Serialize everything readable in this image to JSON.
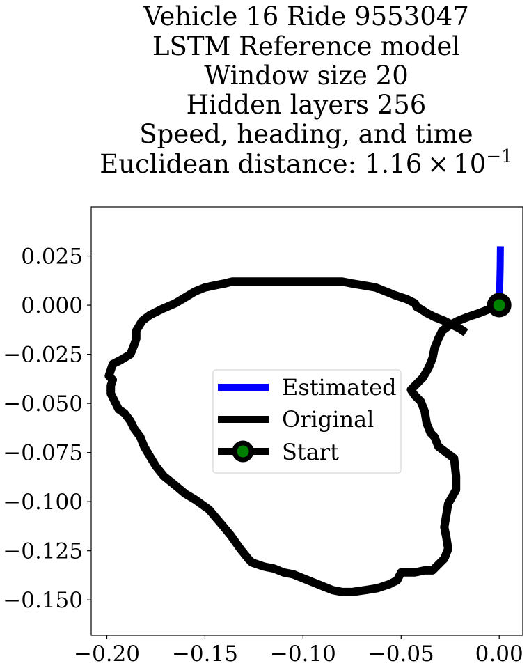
{
  "chart_data": {
    "type": "line",
    "title_lines": [
      "Vehicle 16 Ride 9553047",
      "LSTM Reference model",
      "Window size 20",
      "Hidden layers 256",
      "Speed, heading, and time"
    ],
    "title_metric_label": "Euclidean distance: 1.16",
    "title_metric_times": "×",
    "title_metric_base": "10",
    "title_metric_exp": "−1",
    "xlabel": "",
    "ylabel": "",
    "xlim": [
      -0.208,
      0.012
    ],
    "ylim": [
      -0.168,
      0.05
    ],
    "x_ticks": [
      -0.2,
      -0.15,
      -0.1,
      -0.05,
      0.0
    ],
    "x_tick_labels": [
      "−0.20",
      "−0.15",
      "−0.10",
      "−0.05",
      "0.00"
    ],
    "y_ticks": [
      0.025,
      0.0,
      -0.025,
      -0.05,
      -0.075,
      -0.1,
      -0.125,
      -0.15
    ],
    "y_tick_labels": [
      "0.025",
      "0.000",
      "−0.025",
      "−0.050",
      "−0.075",
      "−0.100",
      "−0.125",
      "−0.150"
    ],
    "grid": false,
    "legend_position": "center",
    "colors": {
      "estimated": "#0000ff",
      "original": "#000000",
      "start_fill": "#008000"
    },
    "series": [
      {
        "name": "Estimated",
        "x": [
          0.0,
          0.0003,
          0.0005,
          0.0006
        ],
        "y": [
          0.0,
          0.01,
          0.02,
          0.03
        ]
      },
      {
        "name": "Original",
        "x": [
          0.0,
          -0.005,
          -0.01,
          -0.016,
          -0.021,
          -0.025,
          -0.029,
          -0.031,
          -0.033,
          -0.034,
          -0.036,
          -0.039,
          -0.043,
          -0.045,
          -0.043,
          -0.04,
          -0.038,
          -0.037,
          -0.035,
          -0.033,
          -0.031,
          -0.023,
          -0.022,
          -0.022,
          -0.026,
          -0.027,
          -0.028,
          -0.027,
          -0.026,
          -0.028,
          -0.03,
          -0.032,
          -0.034,
          -0.038,
          -0.043,
          -0.05,
          -0.052,
          -0.056,
          -0.062,
          -0.068,
          -0.075,
          -0.08,
          -0.085,
          -0.09,
          -0.095,
          -0.1,
          -0.105,
          -0.11,
          -0.115,
          -0.12,
          -0.126,
          -0.128,
          -0.132,
          -0.137,
          -0.142,
          -0.148,
          -0.155,
          -0.16,
          -0.166,
          -0.171,
          -0.175,
          -0.178,
          -0.181,
          -0.183,
          -0.186,
          -0.188,
          -0.191,
          -0.194,
          -0.196,
          -0.198,
          -0.198,
          -0.197,
          -0.199,
          -0.197,
          -0.193,
          -0.188,
          -0.186,
          -0.185,
          -0.185,
          -0.182,
          -0.178,
          -0.172,
          -0.165,
          -0.16,
          -0.155,
          -0.15,
          -0.145,
          -0.14,
          -0.136,
          -0.132,
          -0.128,
          -0.12,
          -0.11,
          -0.1,
          -0.09,
          -0.08,
          -0.075,
          -0.069,
          -0.063,
          -0.058,
          -0.053,
          -0.047,
          -0.043,
          -0.042,
          -0.04,
          -0.037,
          -0.033,
          -0.028,
          -0.024,
          -0.02,
          -0.017
        ],
        "y": [
          0.0,
          -0.002,
          -0.004,
          -0.006,
          -0.008,
          -0.01,
          -0.013,
          -0.017,
          -0.022,
          -0.027,
          -0.032,
          -0.037,
          -0.041,
          -0.043,
          -0.046,
          -0.049,
          -0.054,
          -0.06,
          -0.065,
          -0.067,
          -0.072,
          -0.078,
          -0.087,
          -0.094,
          -0.101,
          -0.107,
          -0.113,
          -0.118,
          -0.124,
          -0.129,
          -0.131,
          -0.133,
          -0.135,
          -0.135,
          -0.136,
          -0.136,
          -0.14,
          -0.142,
          -0.144,
          -0.145,
          -0.146,
          -0.146,
          -0.145,
          -0.143,
          -0.141,
          -0.139,
          -0.137,
          -0.136,
          -0.134,
          -0.133,
          -0.131,
          -0.129,
          -0.124,
          -0.117,
          -0.111,
          -0.104,
          -0.099,
          -0.096,
          -0.091,
          -0.087,
          -0.082,
          -0.077,
          -0.072,
          -0.067,
          -0.063,
          -0.059,
          -0.055,
          -0.053,
          -0.049,
          -0.045,
          -0.041,
          -0.038,
          -0.036,
          -0.03,
          -0.028,
          -0.025,
          -0.02,
          -0.017,
          -0.013,
          -0.008,
          -0.005,
          -0.002,
          0.001,
          0.004,
          0.007,
          0.009,
          0.01,
          0.011,
          0.012,
          0.012,
          0.012,
          0.012,
          0.012,
          0.012,
          0.012,
          0.012,
          0.011,
          0.01,
          0.009,
          0.007,
          0.005,
          0.003,
          0.001,
          -0.001,
          -0.002,
          -0.004,
          -0.006,
          -0.008,
          -0.01,
          -0.012,
          -0.014
        ]
      },
      {
        "name": "Start",
        "x": [
          0.0
        ],
        "y": [
          0.0
        ]
      }
    ]
  }
}
